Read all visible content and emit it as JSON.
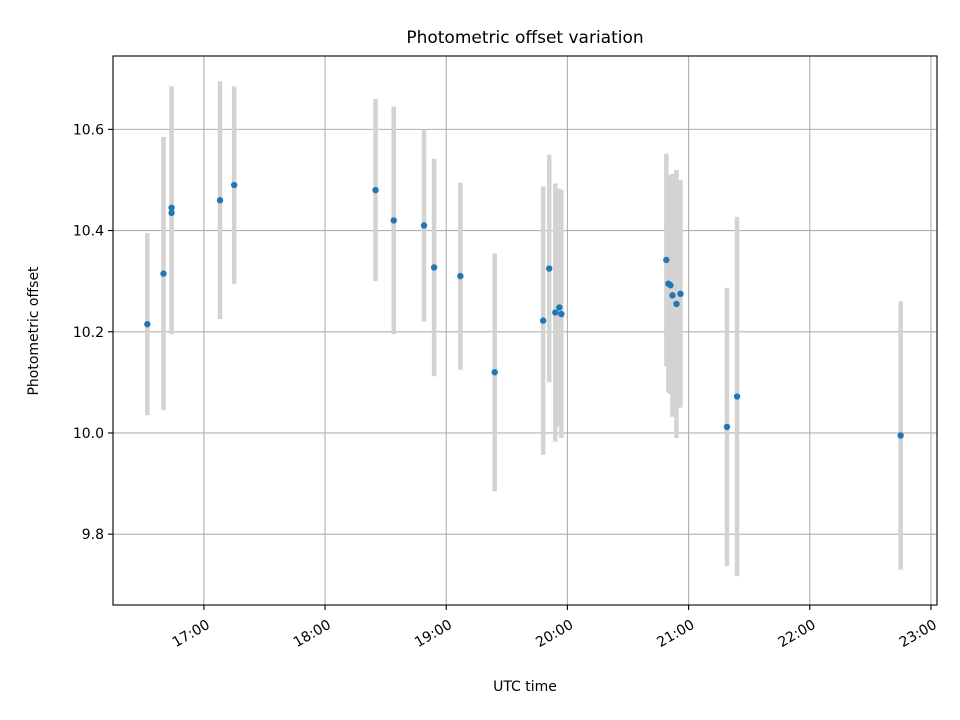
{
  "chart_data": {
    "type": "scatter",
    "title": "Photometric offset variation",
    "xlabel": "UTC time",
    "ylabel": "Photometric offset",
    "x_is_time": true,
    "xlim": [
      "16:15",
      "23:03"
    ],
    "ylim": [
      9.66,
      10.745
    ],
    "xticks": [
      {
        "value": "17:00",
        "label": "17:00"
      },
      {
        "value": "18:00",
        "label": "18:00"
      },
      {
        "value": "19:00",
        "label": "19:00"
      },
      {
        "value": "20:00",
        "label": "20:00"
      },
      {
        "value": "21:00",
        "label": "21:00"
      },
      {
        "value": "22:00",
        "label": "22:00"
      },
      {
        "value": "23:00",
        "label": "23:00"
      }
    ],
    "yticks": [
      {
        "value": 9.8,
        "label": "9.8"
      },
      {
        "value": 10.0,
        "label": "10.0"
      },
      {
        "value": 10.2,
        "label": "10.2"
      },
      {
        "value": 10.4,
        "label": "10.4"
      },
      {
        "value": 10.6,
        "label": "10.6"
      }
    ],
    "grid": true,
    "point_color": "#1f77b4",
    "errorbar_color": "#d3d3d3",
    "points": [
      {
        "x": "16:32",
        "y": 10.215,
        "err": 0.18
      },
      {
        "x": "16:40",
        "y": 10.315,
        "err": 0.27
      },
      {
        "x": "16:44",
        "y": 10.445,
        "err": 0.24
      },
      {
        "x": "16:44",
        "y": 10.435,
        "err": 0.24
      },
      {
        "x": "17:08",
        "y": 10.46,
        "err": 0.235
      },
      {
        "x": "17:15",
        "y": 10.49,
        "err": 0.195
      },
      {
        "x": "18:25",
        "y": 10.48,
        "err": 0.18
      },
      {
        "x": "18:34",
        "y": 10.42,
        "err": 0.225
      },
      {
        "x": "18:49",
        "y": 10.41,
        "err": 0.19
      },
      {
        "x": "18:54",
        "y": 10.327,
        "err": 0.215
      },
      {
        "x": "19:07",
        "y": 10.31,
        "err": 0.185
      },
      {
        "x": "19:24",
        "y": 10.12,
        "err": 0.235
      },
      {
        "x": "19:48",
        "y": 10.222,
        "err": 0.265
      },
      {
        "x": "19:51",
        "y": 10.325,
        "err": 0.225
      },
      {
        "x": "19:54",
        "y": 10.238,
        "err": 0.255
      },
      {
        "x": "19:56",
        "y": 10.248,
        "err": 0.235
      },
      {
        "x": "19:57",
        "y": 10.235,
        "err": 0.245
      },
      {
        "x": "20:49",
        "y": 10.342,
        "err": 0.21
      },
      {
        "x": "20:50",
        "y": 10.295,
        "err": 0.215
      },
      {
        "x": "20:51",
        "y": 10.292,
        "err": 0.215
      },
      {
        "x": "20:52",
        "y": 10.272,
        "err": 0.24
      },
      {
        "x": "20:54",
        "y": 10.255,
        "err": 0.265
      },
      {
        "x": "20:56",
        "y": 10.275,
        "err": 0.225
      },
      {
        "x": "21:19",
        "y": 10.012,
        "err": 0.275
      },
      {
        "x": "21:24",
        "y": 10.072,
        "err": 0.355
      },
      {
        "x": "22:45",
        "y": 9.995,
        "err": 0.265
      }
    ]
  }
}
